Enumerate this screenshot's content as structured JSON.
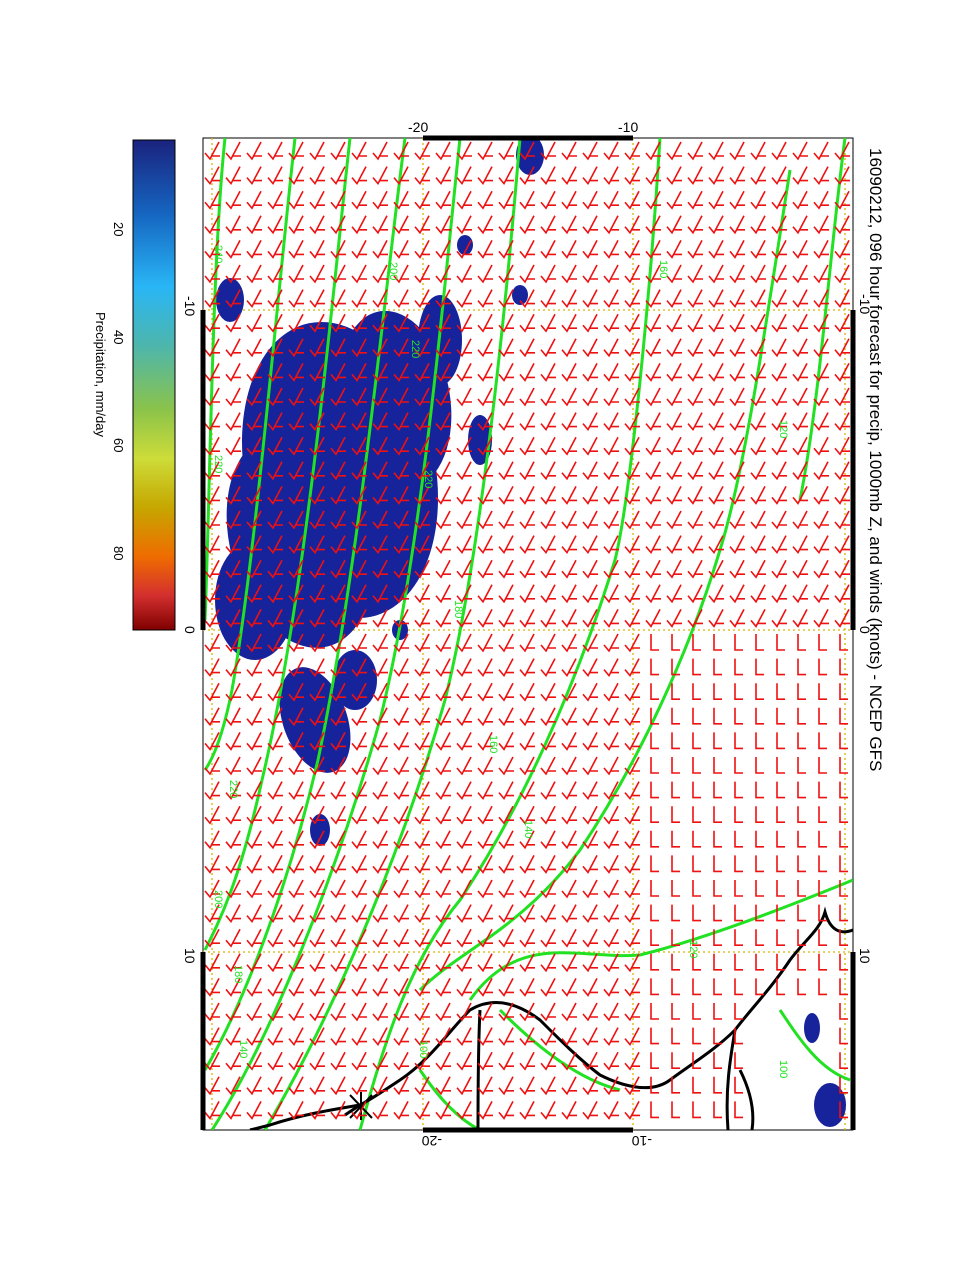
{
  "title": "16090212, 096 hour forecast for precip, 1000mb Z, and winds (knots) - NCEP GFS",
  "colorbar": {
    "label": "Precipitation, mm/day",
    "ticks": [
      "20",
      "40",
      "60",
      "80"
    ],
    "colors": [
      "#1a237e",
      "#1565c0",
      "#29b6f6",
      "#4db6ac",
      "#8bc34a",
      "#cddc39",
      "#c6a700",
      "#ef6c00",
      "#d32f2f",
      "#7f0000"
    ]
  },
  "axes": {
    "top_ticks": [
      "-20",
      "-10"
    ],
    "bottom_ticks": [
      "-20",
      "-10"
    ],
    "left_ticks": [
      "-10",
      "0",
      "10"
    ],
    "right_ticks": [
      "-10",
      "0",
      "10"
    ]
  },
  "contour_labels": [
    "240",
    "220",
    "200",
    "180",
    "160",
    "140",
    "120",
    "100"
  ],
  "colors": {
    "contour": "#22e022",
    "barb": "#ee1111",
    "precip": "#17239a",
    "coast": "#000000",
    "grid": "#d8b400",
    "frame": "#000000"
  }
}
